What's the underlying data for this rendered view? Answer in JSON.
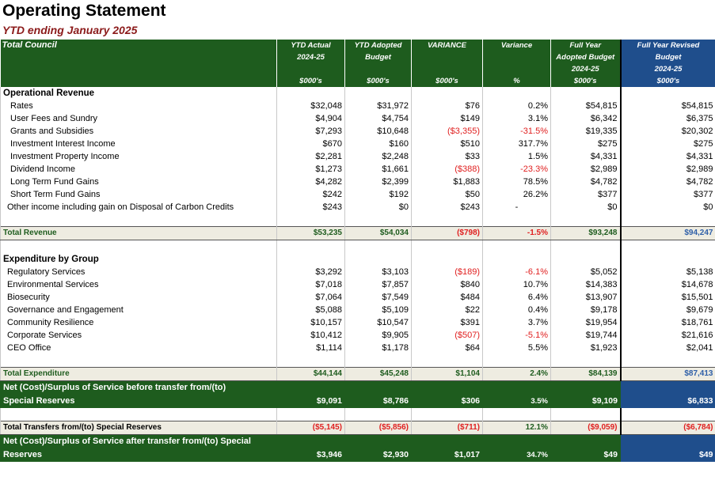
{
  "title": "Operating Statement",
  "subtitle": "YTD ending January 2025",
  "header": {
    "lead": "Total Council",
    "cols": [
      {
        "l1": "YTD Actual",
        "l2": "2024-25",
        "l3": "",
        "l4": "",
        "unit": "$000's"
      },
      {
        "l1": "YTD Adopted",
        "l2": "Budget",
        "l3": "",
        "l4": "",
        "unit": "$000's"
      },
      {
        "l1": "VARIANCE",
        "l2": "",
        "l3": "",
        "l4": "",
        "unit": "$000's"
      },
      {
        "l1": "Variance",
        "l2": "",
        "l3": "",
        "l4": "",
        "unit": "%"
      },
      {
        "l1": "Full Year",
        "l2": "Adopted Budget",
        "l3": "2024-25",
        "l4": "",
        "unit": "$000's"
      },
      {
        "l1": "Full Year Revised",
        "l2": "Budget",
        "l3": "2024-25",
        "l4": "",
        "unit": "$000's"
      }
    ]
  },
  "revenue": {
    "heading": "Operational Revenue",
    "rows": [
      {
        "label": "Rates",
        "v": [
          "$32,048",
          "$31,972",
          "$76",
          "0.2%",
          "$54,815",
          "$54,815"
        ]
      },
      {
        "label": "User Fees and Sundry",
        "v": [
          "$4,904",
          "$4,754",
          "$149",
          "3.1%",
          "$6,342",
          "$6,375"
        ]
      },
      {
        "label": "Grants and Subsidies",
        "v": [
          "$7,293",
          "$10,648",
          "($3,355)",
          "-31.5%",
          "$19,335",
          "$20,302"
        ]
      },
      {
        "label": "Investment Interest Income",
        "v": [
          "$670",
          "$160",
          "$510",
          "317.7%",
          "$275",
          "$275"
        ]
      },
      {
        "label": "Investment Property Income",
        "v": [
          "$2,281",
          "$2,248",
          "$33",
          "1.5%",
          "$4,331",
          "$4,331"
        ]
      },
      {
        "label": "Dividend Income",
        "v": [
          "$1,273",
          "$1,661",
          "($388)",
          "-23.3%",
          "$2,989",
          "$2,989"
        ]
      },
      {
        "label": "Long Term Fund Gains",
        "v": [
          "$4,282",
          "$2,399",
          "$1,883",
          "78.5%",
          "$4,782",
          "$4,782"
        ]
      },
      {
        "label": "Short Term Fund Gains",
        "v": [
          "$242",
          "$192",
          "$50",
          "26.2%",
          "$377",
          "$377"
        ]
      },
      {
        "label": "Other income including gain on Disposal of Carbon Credits",
        "v": [
          "$243",
          "$0",
          "$243",
          "-",
          "$0",
          "$0"
        ]
      }
    ],
    "total": {
      "label": "Total Revenue",
      "v": [
        "$53,235",
        "$54,034",
        "($798)",
        "-1.5%",
        "$93,248",
        "$94,247"
      ]
    }
  },
  "expenditure": {
    "heading": "Expenditure by Group",
    "rows": [
      {
        "label": "Regulatory Services",
        "v": [
          "$3,292",
          "$3,103",
          "($189)",
          "-6.1%",
          "$5,052",
          "$5,138"
        ]
      },
      {
        "label": "Environmental Services",
        "v": [
          "$7,018",
          "$7,857",
          "$840",
          "10.7%",
          "$14,383",
          "$14,678"
        ]
      },
      {
        "label": "Biosecurity",
        "v": [
          "$7,064",
          "$7,549",
          "$484",
          "6.4%",
          "$13,907",
          "$15,501"
        ]
      },
      {
        "label": "Governance and Engagement",
        "v": [
          "$5,088",
          "$5,109",
          "$22",
          "0.4%",
          "$9,178",
          "$9,679"
        ]
      },
      {
        "label": "Community Resilience",
        "v": [
          "$10,157",
          "$10,547",
          "$391",
          "3.7%",
          "$19,954",
          "$18,761"
        ]
      },
      {
        "label": "Corporate Services",
        "v": [
          "$10,412",
          "$9,905",
          "($507)",
          "-5.1%",
          "$19,744",
          "$21,616"
        ]
      },
      {
        "label": "CEO Office",
        "v": [
          "$1,114",
          "$1,178",
          "$64",
          "5.5%",
          "$1,923",
          "$2,041"
        ]
      }
    ],
    "total": {
      "label": "Total Expenditure",
      "v": [
        "$44,144",
        "$45,248",
        "$1,104",
        "2.4%",
        "$84,139",
        "$87,413"
      ]
    }
  },
  "net_before": {
    "label1": "Net (Cost)/Surplus of Service before transfer from/(to)",
    "label2": "Special Reserves",
    "v": [
      "$9,091",
      "$8,786",
      "$306",
      "3.5%",
      "$9,109",
      "$6,833"
    ]
  },
  "transfers": {
    "label": "Total Transfers from/(to) Special Reserves",
    "v": [
      "($5,145)",
      "($5,856)",
      "($711)",
      "12.1%",
      "($9,059)",
      "($6,784)"
    ]
  },
  "net_after": {
    "label1": "Net (Cost)/Surplus of Service after transfer from/(to) Special",
    "label2": "Reserves",
    "v": [
      "$3,946",
      "$2,930",
      "$1,017",
      "34.7%",
      "$49",
      "$49"
    ]
  }
}
